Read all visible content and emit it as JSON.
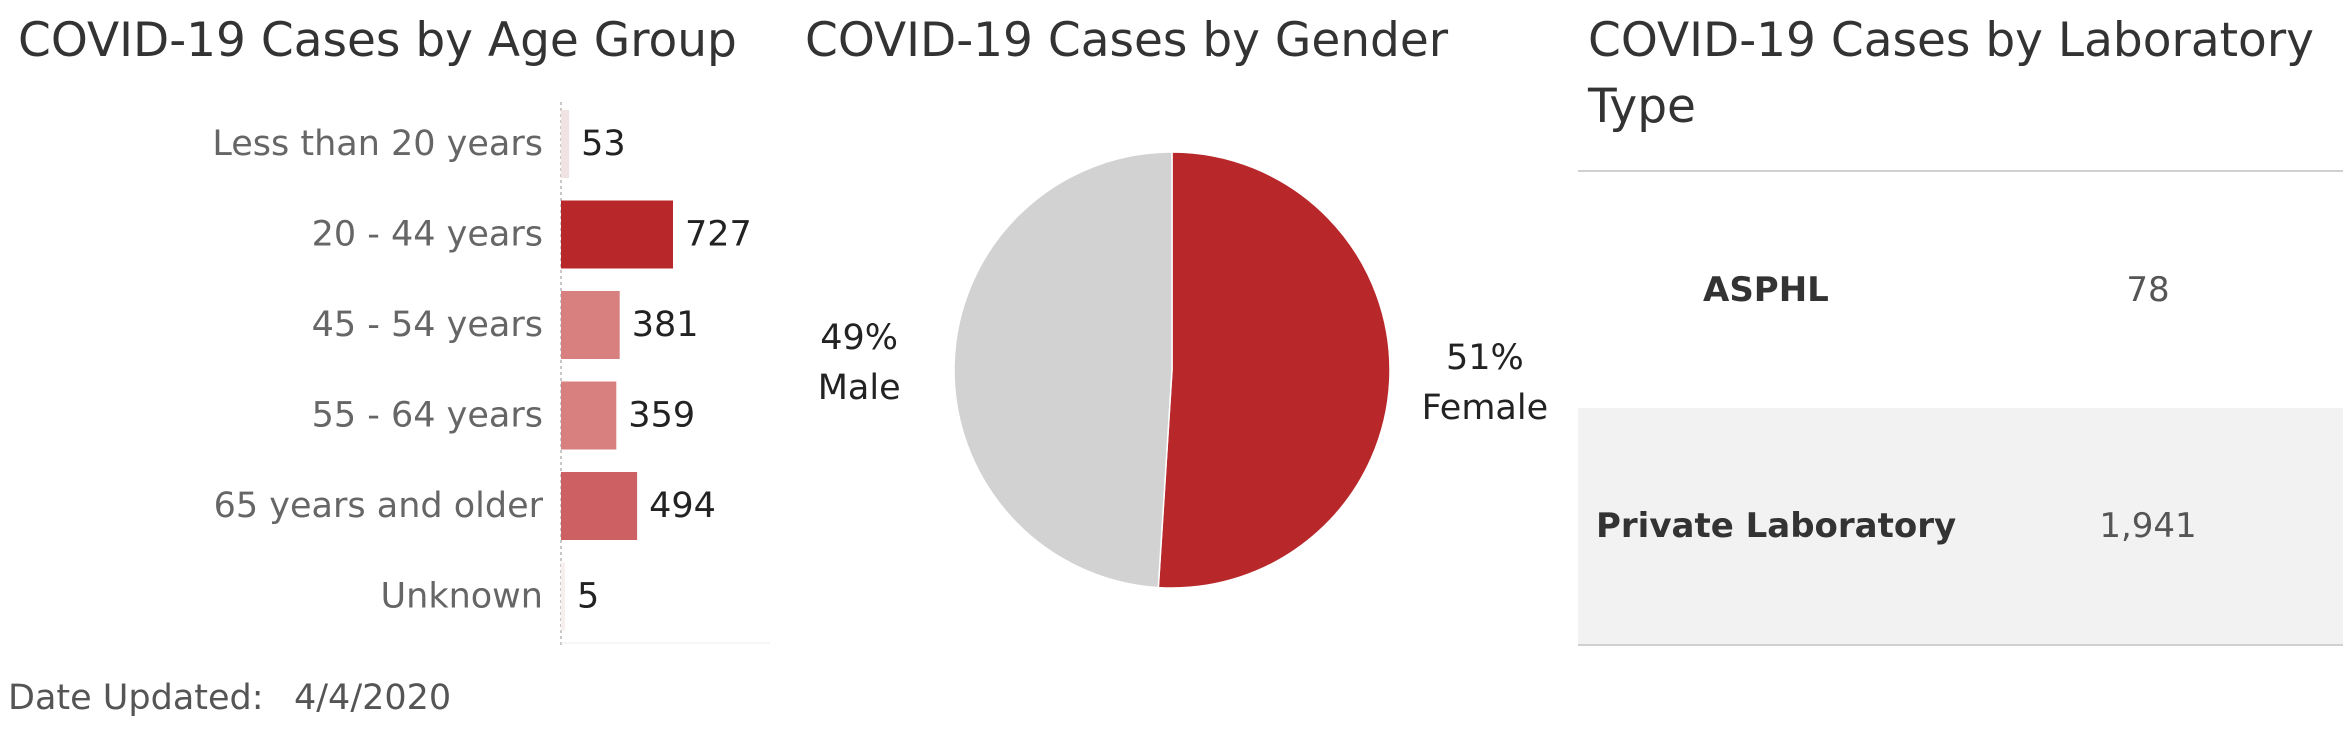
{
  "age_panel": {
    "title": "COVID-19 Cases by Age Group"
  },
  "gender_panel": {
    "title": "COVID-19 Cases by Gender"
  },
  "lab_panel": {
    "title": "COVID-19 Cases by Laboratory Type",
    "rows": [
      {
        "name": "ASPHL",
        "value": "78"
      },
      {
        "name": "Private Laboratory",
        "value": "1,941"
      }
    ]
  },
  "footer": {
    "date_label": "Date Updated:",
    "date_value": "4/4/2020"
  },
  "chart_data": [
    {
      "type": "bar",
      "orientation": "horizontal",
      "title": "COVID-19 Cases by Age Group",
      "categories": [
        "Less than 20 years",
        "20 - 44 years",
        "45 - 54 years",
        "55 - 64 years",
        "65 years and older",
        "Unknown"
      ],
      "values": [
        53,
        727,
        381,
        359,
        494,
        5
      ],
      "value_labels": [
        "53",
        "727",
        "381",
        "359",
        "494",
        "5"
      ],
      "colors": [
        "#f1e3e3",
        "#b8282b",
        "#d88080",
        "#d88080",
        "#cd6063",
        "#f7eeee"
      ],
      "xlim": [
        0,
        727
      ]
    },
    {
      "type": "pie",
      "title": "COVID-19 Cases by Gender",
      "slices": [
        {
          "category": "Female",
          "percent_label": "51%",
          "value": 51,
          "color": "#b8282b"
        },
        {
          "category": "Male",
          "percent_label": "49%",
          "value": 49,
          "color": "#d2d2d2"
        }
      ]
    }
  ]
}
